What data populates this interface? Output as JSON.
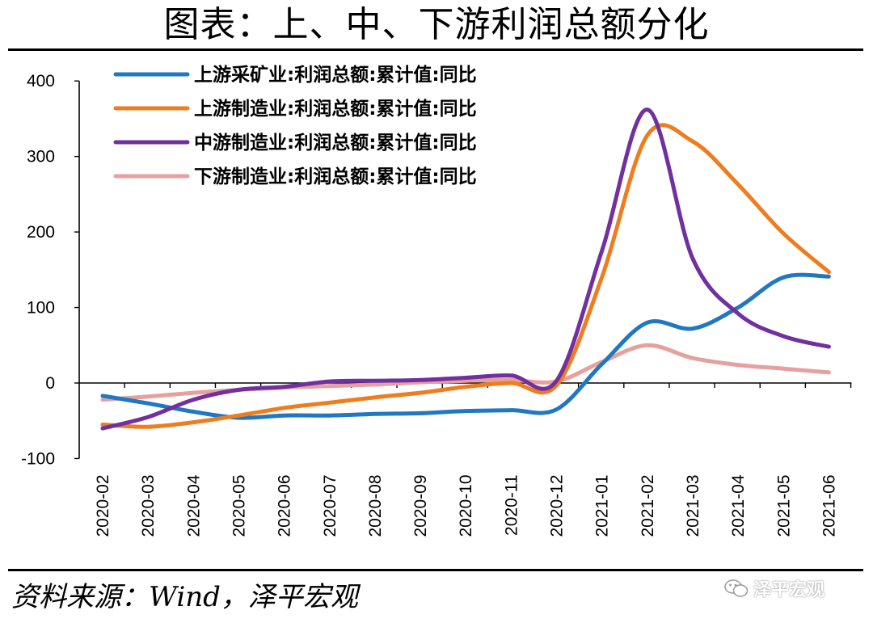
{
  "title": "图表：上、中、下游利润总额分化",
  "source": "资料来源：Wind，泽平宏观",
  "watermark": "泽平宏观",
  "chart_data": {
    "type": "line",
    "x": [
      "2020-02",
      "2020-03",
      "2020-04",
      "2020-05",
      "2020-06",
      "2020-07",
      "2020-08",
      "2020-09",
      "2020-10",
      "2020-11",
      "2020-12",
      "2021-01",
      "2021-02",
      "2021-03",
      "2021-04",
      "2021-05",
      "2021-06"
    ],
    "ylim": [
      -100,
      400
    ],
    "yticks": [
      "400",
      "300",
      "200",
      "100",
      "0",
      "-100"
    ],
    "ytick_values": [
      400,
      300,
      200,
      100,
      0,
      -100
    ],
    "grid": false,
    "legend_position": "top-left",
    "series": [
      {
        "name": "上游采矿业:利润总额:累计值:同比",
        "color": "#1f78c1",
        "values": [
          -17,
          -27,
          -38,
          -46,
          -43,
          -43,
          -41,
          -40,
          -37,
          -36,
          -35,
          25,
          80,
          72,
          100,
          140,
          141
        ]
      },
      {
        "name": "上游制造业:利润总额:累计值:同比",
        "color": "#ee7d1f",
        "values": [
          -55,
          -58,
          -52,
          -43,
          -33,
          -26,
          -19,
          -13,
          -5,
          0,
          -3,
          140,
          328,
          320,
          263,
          198,
          147
        ]
      },
      {
        "name": "中游制造业:利润总额:累计值:同比",
        "color": "#7030a0",
        "values": [
          -60,
          -45,
          -22,
          -9,
          -5,
          2,
          3,
          4,
          7,
          10,
          3,
          175,
          362,
          165,
          92,
          62,
          48
        ]
      },
      {
        "name": "下游制造业:利润总额:累计值:同比",
        "color": "#e6a09d",
        "values": [
          -22,
          -18,
          -13,
          -9,
          -6,
          -4,
          -2,
          1,
          3,
          4,
          2,
          28,
          50,
          33,
          24,
          19,
          14
        ]
      }
    ]
  }
}
